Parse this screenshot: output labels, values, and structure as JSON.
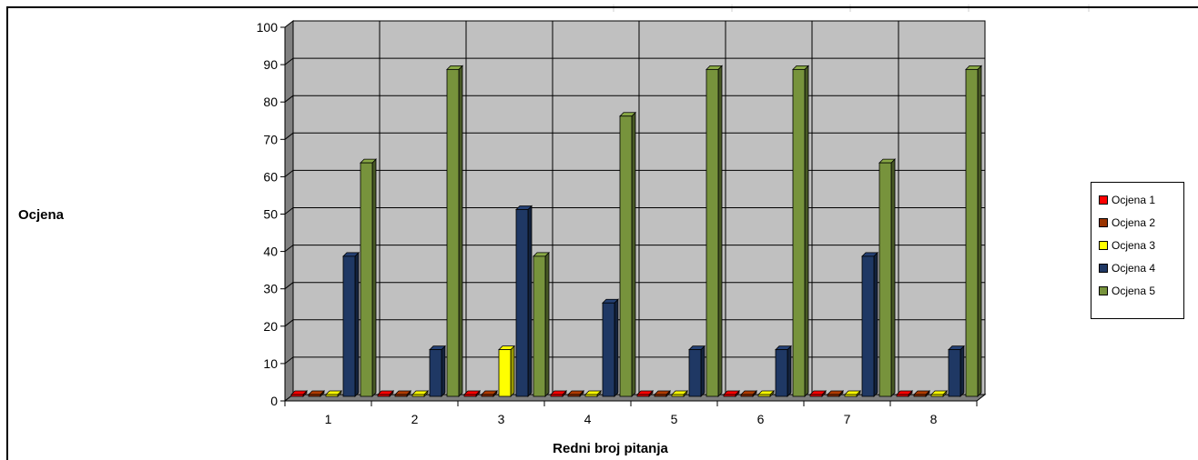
{
  "chart_data": {
    "type": "bar",
    "title": "",
    "xlabel": "Redni broj pitanja",
    "ylabel": "Ocjena",
    "ylim": [
      0,
      100
    ],
    "yticks": [
      0,
      10,
      20,
      30,
      40,
      50,
      60,
      70,
      80,
      90,
      100
    ],
    "categories": [
      "1",
      "2",
      "3",
      "4",
      "5",
      "6",
      "7",
      "8"
    ],
    "grid": true,
    "legend_position": "right",
    "series": [
      {
        "name": "Ocjena 1",
        "color": "#ff0000",
        "values": [
          0,
          0,
          0,
          0,
          0,
          0,
          0,
          0
        ]
      },
      {
        "name": "Ocjena 2",
        "color": "#993300",
        "values": [
          0,
          0,
          0,
          0,
          0,
          0,
          0,
          0
        ]
      },
      {
        "name": "Ocjena 3",
        "color": "#ffff00",
        "values": [
          0,
          0,
          12.5,
          0,
          0,
          0,
          0,
          0
        ]
      },
      {
        "name": "Ocjena 4",
        "color": "#1f3864",
        "values": [
          37.5,
          12.5,
          50,
          25,
          12.5,
          12.5,
          37.5,
          12.5
        ]
      },
      {
        "name": "Ocjena 5",
        "color": "#77933c",
        "values": [
          62.5,
          87.5,
          37.5,
          75,
          87.5,
          87.5,
          62.5,
          87.5
        ]
      }
    ]
  }
}
